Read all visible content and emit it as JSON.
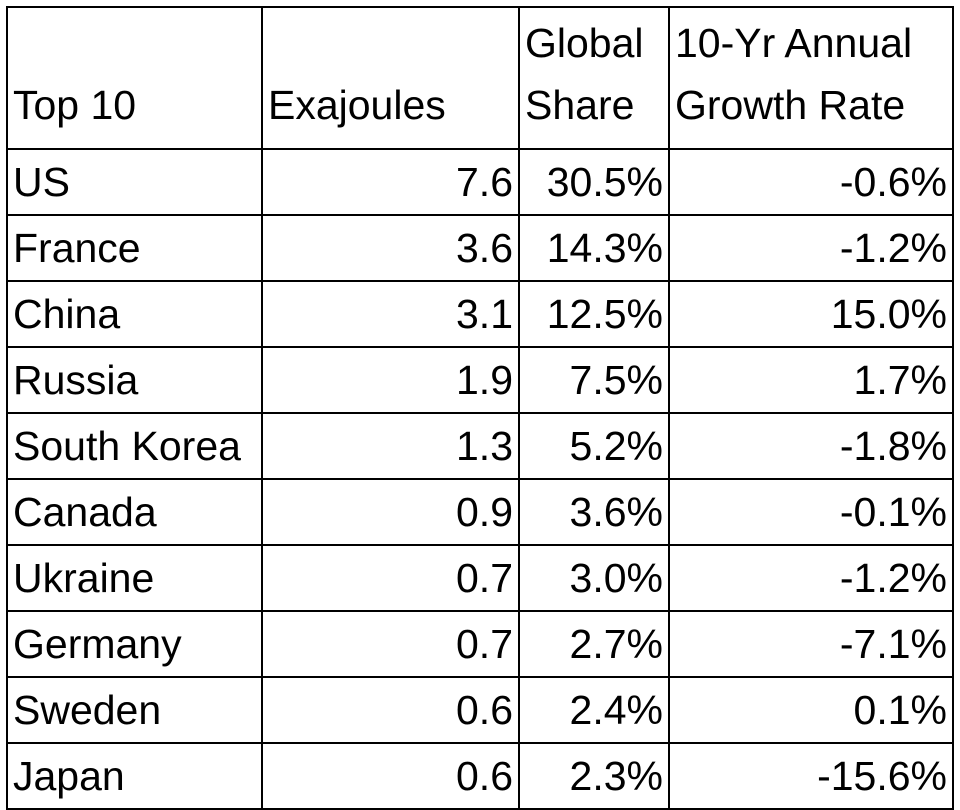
{
  "chart_data": {
    "type": "table",
    "columns": [
      "Top 10",
      "Exajoules",
      "Global Share",
      "10-Yr Annual Growth Rate"
    ],
    "header_lines": [
      [
        "Top 10"
      ],
      [
        "Exajoules"
      ],
      [
        "Global",
        "Share"
      ],
      [
        "10-Yr Annual",
        "Growth Rate"
      ]
    ],
    "rows": [
      [
        "US",
        "7.6",
        "30.5%",
        "-0.6%"
      ],
      [
        "France",
        "3.6",
        "14.3%",
        "-1.2%"
      ],
      [
        "China",
        "3.1",
        "12.5%",
        "15.0%"
      ],
      [
        "Russia",
        "1.9",
        "7.5%",
        "1.7%"
      ],
      [
        "South Korea",
        "1.3",
        "5.2%",
        "-1.8%"
      ],
      [
        "Canada",
        "0.9",
        "3.6%",
        "-0.1%"
      ],
      [
        "Ukraine",
        "0.7",
        "3.0%",
        "-1.2%"
      ],
      [
        "Germany",
        "0.7",
        "2.7%",
        "-7.1%"
      ],
      [
        "Sweden",
        "0.6",
        "2.4%",
        "0.1%"
      ],
      [
        "Japan",
        "0.6",
        "2.3%",
        "-15.6%"
      ]
    ]
  }
}
